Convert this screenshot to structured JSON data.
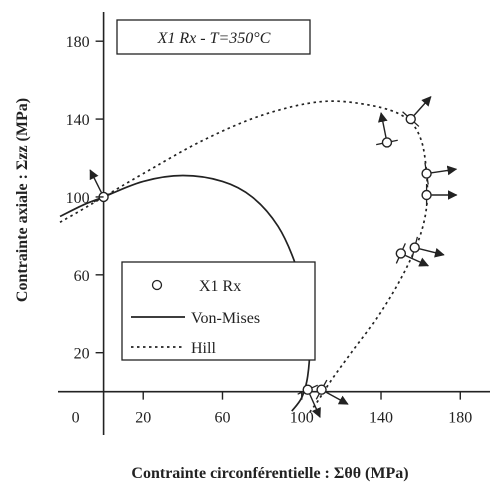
{
  "chart_data": {
    "type": "scatter",
    "title": "X1 Rx  - T=350°C",
    "xlabel": "Contrainte circonférentielle : Σθθ (MPa)",
    "ylabel": "Contrainte axiale : Σzz (MPa)",
    "xlim": [
      -22,
      195
    ],
    "ylim": [
      -12,
      195
    ],
    "x_ticks": [
      0,
      20,
      60,
      100,
      140,
      180
    ],
    "y_ticks": [
      20,
      60,
      100,
      140,
      180
    ],
    "grid": false,
    "legend_position": "center-left",
    "legend": [
      {
        "label": "X1 Rx",
        "marker": "circle"
      },
      {
        "label": "Von-Mises",
        "style": "solid"
      },
      {
        "label": "Hill",
        "style": "dotted"
      }
    ],
    "series": [
      {
        "name": "X1 Rx",
        "kind": "points",
        "points": [
          {
            "x": 0,
            "y": 100
          },
          {
            "x": 143,
            "y": 128
          },
          {
            "x": 155,
            "y": 140
          },
          {
            "x": 163,
            "y": 112
          },
          {
            "x": 163,
            "y": 101
          },
          {
            "x": 150,
            "y": 71
          },
          {
            "x": 157,
            "y": 74
          },
          {
            "x": 103,
            "y": 1
          },
          {
            "x": 110,
            "y": 1
          }
        ],
        "normals": [
          {
            "dx": -0.5,
            "dy": 1.0
          },
          {
            "dx": -0.2,
            "dy": 1.0
          },
          {
            "dx": 0.9,
            "dy": 1.0
          },
          {
            "dx": 1.0,
            "dy": 0.15
          },
          {
            "dx": 1.0,
            "dy": 0.0
          },
          {
            "dx": 1.0,
            "dy": -0.45
          },
          {
            "dx": 1.0,
            "dy": -0.25
          },
          {
            "dx": 0.45,
            "dy": -1.0
          },
          {
            "dx": 1.0,
            "dy": -0.55
          }
        ]
      },
      {
        "name": "Von-Mises",
        "kind": "line",
        "style": "solid",
        "points": [
          {
            "x": -22,
            "y": 90
          },
          {
            "x": -10,
            "y": 96
          },
          {
            "x": 0,
            "y": 100
          },
          {
            "x": 20,
            "y": 108
          },
          {
            "x": 40,
            "y": 111
          },
          {
            "x": 60,
            "y": 108
          },
          {
            "x": 75,
            "y": 100
          },
          {
            "x": 88,
            "y": 85
          },
          {
            "x": 97,
            "y": 65
          },
          {
            "x": 102,
            "y": 45
          },
          {
            "x": 104,
            "y": 25
          },
          {
            "x": 103,
            "y": 8
          },
          {
            "x": 100,
            "y": -3
          },
          {
            "x": 95,
            "y": -10
          }
        ]
      },
      {
        "name": "Hill",
        "kind": "line",
        "style": "dotted",
        "points": [
          {
            "x": -22,
            "y": 87
          },
          {
            "x": -10,
            "y": 94
          },
          {
            "x": 0,
            "y": 100
          },
          {
            "x": 20,
            "y": 112
          },
          {
            "x": 50,
            "y": 129
          },
          {
            "x": 80,
            "y": 142
          },
          {
            "x": 110,
            "y": 149
          },
          {
            "x": 135,
            "y": 147
          },
          {
            "x": 152,
            "y": 141
          },
          {
            "x": 160,
            "y": 130
          },
          {
            "x": 163,
            "y": 112
          },
          {
            "x": 163,
            "y": 95
          },
          {
            "x": 159,
            "y": 78
          },
          {
            "x": 150,
            "y": 58
          },
          {
            "x": 138,
            "y": 38
          },
          {
            "x": 125,
            "y": 20
          },
          {
            "x": 115,
            "y": 6
          },
          {
            "x": 108,
            "y": -5
          },
          {
            "x": 103,
            "y": -12
          }
        ]
      }
    ]
  }
}
